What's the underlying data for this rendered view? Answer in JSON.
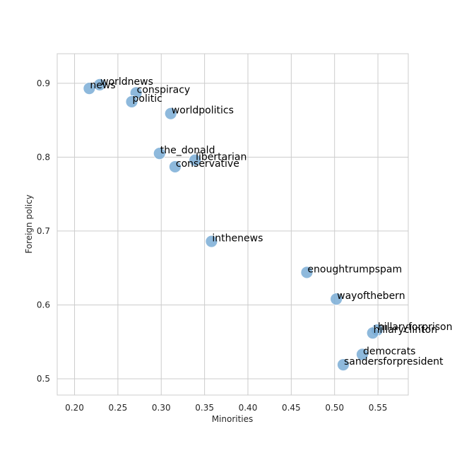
{
  "chart_data": {
    "type": "scatter",
    "xlabel": "Minorities",
    "ylabel": "Foreign policy",
    "xlim": [
      0.18,
      0.585
    ],
    "ylim": [
      0.478,
      0.94
    ],
    "xticks": [
      0.2,
      0.25,
      0.3,
      0.35,
      0.4,
      0.45,
      0.5,
      0.55
    ],
    "xtick_labels": [
      "0.20",
      "0.25",
      "0.30",
      "0.35",
      "0.40",
      "0.45",
      "0.50",
      "0.55"
    ],
    "yticks": [
      0.5,
      0.6,
      0.7,
      0.8,
      0.9
    ],
    "ytick_labels": [
      "0.5",
      "0.6",
      "0.7",
      "0.8",
      "0.9"
    ],
    "grid": true,
    "marker_color": "#7aadd6",
    "points": [
      {
        "label": "worldnews",
        "x": 0.229,
        "y": 0.898
      },
      {
        "label": "news",
        "x": 0.217,
        "y": 0.893
      },
      {
        "label": "conspiracy",
        "x": 0.271,
        "y": 0.887
      },
      {
        "label": "politic",
        "x": 0.266,
        "y": 0.875
      },
      {
        "label": "worldpolitics",
        "x": 0.311,
        "y": 0.859
      },
      {
        "label": "the_donald",
        "x": 0.298,
        "y": 0.805
      },
      {
        "label": "libertarian",
        "x": 0.339,
        "y": 0.796
      },
      {
        "label": "conservative",
        "x": 0.316,
        "y": 0.787
      },
      {
        "label": "inthenews",
        "x": 0.358,
        "y": 0.686
      },
      {
        "label": "enoughtrumpspam",
        "x": 0.468,
        "y": 0.644
      },
      {
        "label": "wayofthebern",
        "x": 0.502,
        "y": 0.608
      },
      {
        "label": "hillaryforprison",
        "x": 0.549,
        "y": 0.566
      },
      {
        "label": "hillaryclinton",
        "x": 0.544,
        "y": 0.562
      },
      {
        "label": "democrats",
        "x": 0.532,
        "y": 0.533
      },
      {
        "label": "sandersforpresident",
        "x": 0.51,
        "y": 0.519
      }
    ]
  }
}
